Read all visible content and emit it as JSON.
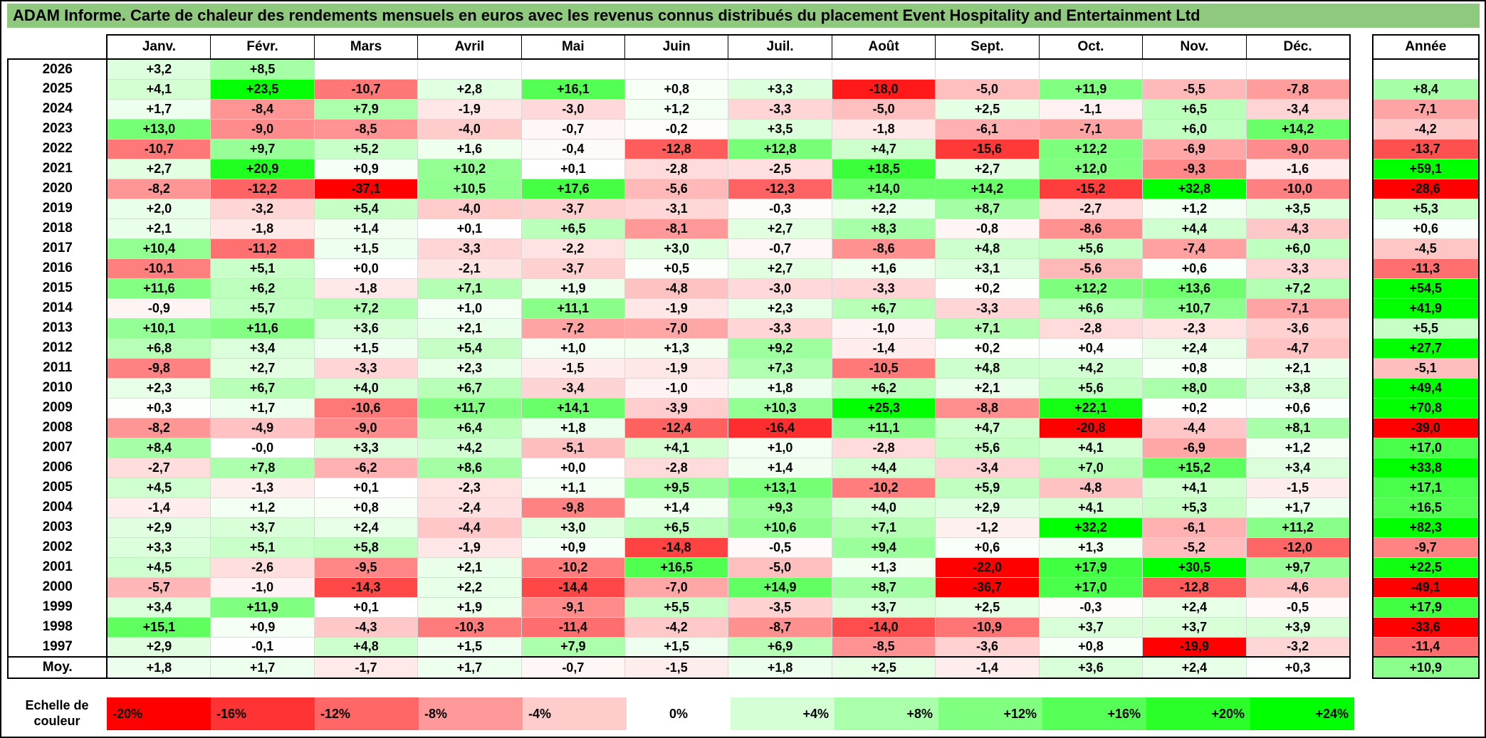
{
  "colors": {
    "title_bg": "#8FC97E",
    "frame": "#000000",
    "grid_line": "#D9D9D9",
    "zero": "#FFFFFF",
    "negative_max": "#FF0000",
    "positive_max": "#00FF00"
  },
  "chart_data": {
    "type": "heatmap",
    "title": "ADAM Informe. Carte de chaleur des rendements mensuels en euros avec les revenus connus distribués du placement Event Hospitality and Entertainment Ltd",
    "columns": [
      "Janv.",
      "Févr.",
      "Mars",
      "Avril",
      "Mai",
      "Juin",
      "Juil.",
      "Août",
      "Sept.",
      "Oct.",
      "Nov.",
      "Déc."
    ],
    "annual_column_header": "Année",
    "average_row_label": "Moy.",
    "rows": [
      {
        "year": "2026",
        "values": [
          "+3,2",
          "+8,5",
          null,
          null,
          null,
          null,
          null,
          null,
          null,
          null,
          null,
          null
        ],
        "annual": null
      },
      {
        "year": "2025",
        "values": [
          "+4,1",
          "+23,5",
          "-10,7",
          "+2,8",
          "+16,1",
          "+0,8",
          "+3,3",
          "-18,0",
          "-5,0",
          "+11,9",
          "-5,5",
          "-7,8"
        ],
        "annual": "+8,4"
      },
      {
        "year": "2024",
        "values": [
          "+1,7",
          "-8,4",
          "+7,9",
          "-1,9",
          "-3,0",
          "+1,2",
          "-3,3",
          "-5,0",
          "+2,5",
          "-1,1",
          "+6,5",
          "-3,4"
        ],
        "annual": "-7,1"
      },
      {
        "year": "2023",
        "values": [
          "+13,0",
          "-9,0",
          "-8,5",
          "-4,0",
          "-0,7",
          "-0,2",
          "+3,5",
          "-1,8",
          "-6,1",
          "-7,1",
          "+6,0",
          "+14,2"
        ],
        "annual": "-4,2"
      },
      {
        "year": "2022",
        "values": [
          "-10,7",
          "+9,7",
          "+5,2",
          "+1,6",
          "-0,4",
          "-12,8",
          "+12,8",
          "+4,7",
          "-15,6",
          "+12,2",
          "-6,9",
          "-9,0"
        ],
        "annual": "-13,7"
      },
      {
        "year": "2021",
        "values": [
          "+2,7",
          "+20,9",
          "+0,9",
          "+10,2",
          "+0,1",
          "-2,8",
          "-2,5",
          "+18,5",
          "+2,7",
          "+12,0",
          "-9,3",
          "-1,6"
        ],
        "annual": "+59,1"
      },
      {
        "year": "2020",
        "values": [
          "-8,2",
          "-12,2",
          "-37,1",
          "+10,5",
          "+17,6",
          "-5,6",
          "-12,3",
          "+14,0",
          "+14,2",
          "-15,2",
          "+32,8",
          "-10,0"
        ],
        "annual": "-28,6"
      },
      {
        "year": "2019",
        "values": [
          "+2,0",
          "-3,2",
          "+5,4",
          "-4,0",
          "-3,7",
          "-3,1",
          "-0,3",
          "+2,2",
          "+8,7",
          "-2,7",
          "+1,2",
          "+3,5"
        ],
        "annual": "+5,3"
      },
      {
        "year": "2018",
        "values": [
          "+2,1",
          "-1,8",
          "+1,4",
          "+0,1",
          "+6,5",
          "-8,1",
          "+2,7",
          "+8,3",
          "-0,8",
          "-8,6",
          "+4,4",
          "-4,3"
        ],
        "annual": "+0,6"
      },
      {
        "year": "2017",
        "values": [
          "+10,4",
          "-11,2",
          "+1,5",
          "-3,3",
          "-2,2",
          "+3,0",
          "-0,7",
          "-8,6",
          "+4,8",
          "+5,6",
          "-7,4",
          "+6,0"
        ],
        "annual": "-4,5"
      },
      {
        "year": "2016",
        "values": [
          "-10,1",
          "+5,1",
          "+0,0",
          "-2,1",
          "-3,7",
          "+0,5",
          "+2,7",
          "+1,6",
          "+3,1",
          "-5,6",
          "+0,6",
          "-3,3"
        ],
        "annual": "-11,3"
      },
      {
        "year": "2015",
        "values": [
          "+11,6",
          "+6,2",
          "-1,8",
          "+7,1",
          "+1,9",
          "-4,8",
          "-3,0",
          "-3,3",
          "+0,2",
          "+12,2",
          "+13,6",
          "+7,2"
        ],
        "annual": "+54,5"
      },
      {
        "year": "2014",
        "values": [
          "-0,9",
          "+5,7",
          "+7,2",
          "+1,0",
          "+11,1",
          "-1,9",
          "+2,3",
          "+6,7",
          "-3,3",
          "+6,6",
          "+10,7",
          "-7,1"
        ],
        "annual": "+41,9"
      },
      {
        "year": "2013",
        "values": [
          "+10,1",
          "+11,6",
          "+3,6",
          "+2,1",
          "-7,2",
          "-7,0",
          "-3,3",
          "-1,0",
          "+7,1",
          "-2,8",
          "-2,3",
          "-3,6"
        ],
        "annual": "+5,5"
      },
      {
        "year": "2012",
        "values": [
          "+6,8",
          "+3,4",
          "+1,5",
          "+5,4",
          "+1,0",
          "+1,3",
          "+9,2",
          "-1,4",
          "+0,2",
          "+0,4",
          "+2,4",
          "-4,7"
        ],
        "annual": "+27,7"
      },
      {
        "year": "2011",
        "values": [
          "-9,8",
          "+2,7",
          "-3,3",
          "+2,3",
          "-1,5",
          "-1,9",
          "+7,3",
          "-10,5",
          "+4,8",
          "+4,2",
          "+0,8",
          "+2,1"
        ],
        "annual": "-5,1"
      },
      {
        "year": "2010",
        "values": [
          "+2,3",
          "+6,7",
          "+4,0",
          "+6,7",
          "-3,4",
          "-1,0",
          "+1,8",
          "+6,2",
          "+2,1",
          "+5,6",
          "+8,0",
          "+3,8"
        ],
        "annual": "+49,4"
      },
      {
        "year": "2009",
        "values": [
          "+0,3",
          "+1,7",
          "-10,6",
          "+11,7",
          "+14,1",
          "-3,9",
          "+10,3",
          "+25,3",
          "-8,8",
          "+22,1",
          "+0,2",
          "+0,6"
        ],
        "annual": "+70,8"
      },
      {
        "year": "2008",
        "values": [
          "-8,2",
          "-4,9",
          "-9,0",
          "+6,4",
          "+1,8",
          "-12,4",
          "-16,4",
          "+11,1",
          "+4,7",
          "-20,8",
          "-4,4",
          "+8,1"
        ],
        "annual": "-39,0"
      },
      {
        "year": "2007",
        "values": [
          "+8,4",
          "-0,0",
          "+3,3",
          "+4,2",
          "-5,1",
          "+4,1",
          "+1,0",
          "-2,8",
          "+5,6",
          "+4,1",
          "-6,9",
          "+1,2"
        ],
        "annual": "+17,0"
      },
      {
        "year": "2006",
        "values": [
          "-2,7",
          "+7,8",
          "-6,2",
          "+8,6",
          "+0,0",
          "-2,8",
          "+1,4",
          "+4,4",
          "-3,4",
          "+7,0",
          "+15,2",
          "+3,4"
        ],
        "annual": "+33,8"
      },
      {
        "year": "2005",
        "values": [
          "+4,5",
          "-1,3",
          "+0,1",
          "-2,3",
          "+1,1",
          "+9,5",
          "+13,1",
          "-10,2",
          "+5,9",
          "-4,8",
          "+4,1",
          "-1,5"
        ],
        "annual": "+17,1"
      },
      {
        "year": "2004",
        "values": [
          "-1,4",
          "+1,2",
          "+0,8",
          "-2,4",
          "-9,8",
          "+1,4",
          "+9,3",
          "+4,0",
          "+2,9",
          "+4,1",
          "+5,3",
          "+1,7"
        ],
        "annual": "+16,5"
      },
      {
        "year": "2003",
        "values": [
          "+2,9",
          "+3,7",
          "+2,4",
          "-4,4",
          "+3,0",
          "+6,5",
          "+10,6",
          "+7,1",
          "-1,2",
          "+32,2",
          "-6,1",
          "+11,2"
        ],
        "annual": "+82,3"
      },
      {
        "year": "2002",
        "values": [
          "+3,3",
          "+5,1",
          "+5,8",
          "-1,9",
          "+0,9",
          "-14,8",
          "-0,5",
          "+9,4",
          "+0,6",
          "+1,3",
          "-5,2",
          "-12,0"
        ],
        "annual": "-9,7"
      },
      {
        "year": "2001",
        "values": [
          "+4,5",
          "-2,6",
          "-9,5",
          "+2,1",
          "-10,2",
          "+16,5",
          "-5,0",
          "+1,3",
          "-22,0",
          "+17,9",
          "+30,5",
          "+9,7"
        ],
        "annual": "+22,5"
      },
      {
        "year": "2000",
        "values": [
          "-5,7",
          "-1,0",
          "-14,3",
          "+2,2",
          "-14,4",
          "-7,0",
          "+14,9",
          "+8,7",
          "-36,7",
          "+17,0",
          "-12,8",
          "-4,6"
        ],
        "annual": "-49,1"
      },
      {
        "year": "1999",
        "values": [
          "+3,4",
          "+11,9",
          "+0,1",
          "+1,9",
          "-9,1",
          "+5,5",
          "-3,5",
          "+3,7",
          "+2,5",
          "-0,3",
          "+2,4",
          "-0,5"
        ],
        "annual": "+17,9"
      },
      {
        "year": "1998",
        "values": [
          "+15,1",
          "+0,9",
          "-4,3",
          "-10,3",
          "-11,4",
          "-4,2",
          "-8,7",
          "-14,0",
          "-10,9",
          "+3,7",
          "+3,7",
          "+3,9"
        ],
        "annual": "-33,6"
      },
      {
        "year": "1997",
        "values": [
          "+2,9",
          "-0,1",
          "+4,8",
          "+1,5",
          "+7,9",
          "+1,5",
          "+6,9",
          "-8,5",
          "-3,6",
          "+0,8",
          "-19,9",
          "-3,2"
        ],
        "annual": "-11,4"
      }
    ],
    "average_row": {
      "values": [
        "+1,8",
        "+1,7",
        "-1,7",
        "+1,7",
        "-0,7",
        "-1,5",
        "+1,8",
        "+2,5",
        "-1,4",
        "+3,6",
        "+2,4",
        "+0,3"
      ],
      "annual": "+10,9"
    },
    "color_scale": {
      "label": "Echelle de couleur",
      "ticks": [
        "-20%",
        "-16%",
        "-12%",
        "-8%",
        "-4%",
        "0%",
        "+4%",
        "+8%",
        "+12%",
        "+16%",
        "+20%",
        "+24%"
      ],
      "tick_values": [
        -20,
        -16,
        -12,
        -8,
        -4,
        0,
        4,
        8,
        12,
        16,
        20,
        24
      ],
      "negative_limit": -20,
      "positive_limit": 24
    }
  }
}
